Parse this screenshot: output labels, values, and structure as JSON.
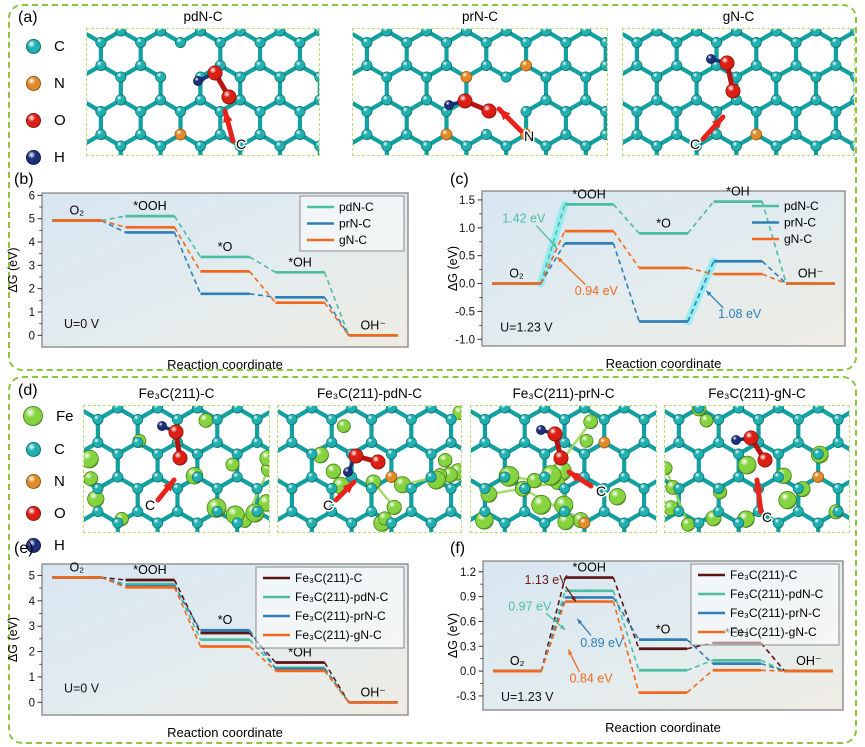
{
  "group_a": {
    "label": "(a)",
    "atoms": [
      {
        "symbol": "C",
        "color": "#1fb0b0"
      },
      {
        "symbol": "N",
        "color": "#e08a28"
      },
      {
        "symbol": "O",
        "color": "#dc1f14"
      },
      {
        "symbol": "H",
        "color": "#1c2f7a"
      }
    ],
    "structures": [
      {
        "title": "pdN-C",
        "arrow_label": "C"
      },
      {
        "title": "prN-C",
        "arrow_label": "N"
      },
      {
        "title": "gN-C",
        "arrow_label": "C"
      }
    ]
  },
  "group_d": {
    "label": "(d)",
    "atoms": [
      {
        "symbol": "Fe",
        "color": "#85d33f"
      },
      {
        "symbol": "C",
        "color": "#1fb0b0"
      },
      {
        "symbol": "N",
        "color": "#e08a28"
      },
      {
        "symbol": "O",
        "color": "#dc1f14"
      },
      {
        "symbol": "H",
        "color": "#1c2f7a"
      }
    ],
    "structures": [
      {
        "title": "Fe₃C(211)-C",
        "arrow_label": "C"
      },
      {
        "title": "Fe₃C(211)-pdN-C",
        "arrow_label": "C"
      },
      {
        "title": "Fe₃C(211)-prN-C",
        "arrow_label": "C"
      },
      {
        "title": "Fe₃C(211)-gN-C",
        "arrow_label": "C"
      }
    ]
  },
  "chart_data": [
    {
      "panel": "b",
      "label": "(b)",
      "type": "line",
      "stages": [
        "O₂",
        "*OOH",
        "*O",
        "*OH",
        "OH⁻"
      ],
      "xlabel": "Reaction coordinate",
      "ylabel": "ΔG (eV)",
      "potential": {
        "text": "U=0 V",
        "x": 0.06,
        "y": 0.32
      },
      "ylim": [
        -0.5,
        6.1
      ],
      "yticks": [
        0,
        1,
        2,
        3,
        4,
        5,
        6
      ],
      "ytick_labels": [
        "0",
        "1",
        "2",
        "3",
        "4",
        "5",
        "6"
      ],
      "legend_box": true,
      "series": [
        {
          "name": "pdN-C",
          "color": "#4cbda1",
          "values": [
            4.92,
            5.11,
            3.36,
            2.7,
            0
          ]
        },
        {
          "name": "prN-C",
          "color": "#2d7fb6",
          "values": [
            4.92,
            4.41,
            1.78,
            1.63,
            0
          ]
        },
        {
          "name": "gN-C",
          "color": "#f2691d",
          "values": [
            4.92,
            4.63,
            2.74,
            1.4,
            0
          ]
        }
      ],
      "annotations": [],
      "highlights": [],
      "highlight_color": "#7deef2"
    },
    {
      "panel": "c",
      "label": "(c)",
      "type": "line",
      "stages": [
        "O₂",
        "*OOH",
        "*O",
        "*OH",
        "OH⁻"
      ],
      "xlabel": "Reaction coordinate",
      "ylabel": "ΔG (eV)",
      "potential": {
        "text": "U=1.23 V",
        "x": 0.05,
        "y": -0.86
      },
      "ylim": [
        -1.12,
        1.66
      ],
      "yticks": [
        -1.0,
        -0.5,
        0.0,
        0.5,
        1.0,
        1.5
      ],
      "ytick_labels": [
        "-1.0",
        "-0.5",
        "0.0",
        "0.5",
        "1.0",
        "1.5"
      ],
      "legend_box": false,
      "series": [
        {
          "name": "pdN-C",
          "color": "#4cbda1",
          "values": [
            0,
            1.42,
            0.9,
            1.47,
            0
          ]
        },
        {
          "name": "prN-C",
          "color": "#2d7fb6",
          "values": [
            0,
            0.72,
            -0.68,
            0.4,
            0
          ]
        },
        {
          "name": "gN-C",
          "color": "#f2691d",
          "values": [
            0,
            0.94,
            0.28,
            0.17,
            0
          ]
        }
      ],
      "annotations": [
        {
          "text": "1.42 eV",
          "color": "#4cbda1",
          "tx": 0.115,
          "ty": 1.17,
          "lx1": 0.15,
          "ly1": 1.04,
          "lx2": 0.206,
          "ly2": 0.64
        },
        {
          "text": "0.94 eV",
          "color": "#f2691d",
          "tx": 0.315,
          "ty": -0.13,
          "lx1": 0.285,
          "ly1": -0.02,
          "lx2": 0.208,
          "ly2": 0.47
        },
        {
          "text": "1.08 eV",
          "color": "#2d7fb6",
          "tx": 0.71,
          "ty": -0.55,
          "lx1": 0.665,
          "ly1": -0.44,
          "lx2": 0.618,
          "ly2": -0.13
        }
      ],
      "highlights": [
        {
          "series": 0,
          "segment": 0
        },
        {
          "series": 1,
          "segment": 2
        }
      ],
      "highlight_color": "#7deef2"
    },
    {
      "panel": "e",
      "label": "(e)",
      "type": "line",
      "stages": [
        "O₂",
        "*OOH",
        "*O",
        "*OH",
        "OH⁻"
      ],
      "xlabel": "Reaction coordinate",
      "ylabel": "ΔG (eV)",
      "potential": {
        "text": "U=0 V",
        "x": 0.06,
        "y": 0.38
      },
      "ylim": [
        -0.5,
        5.45
      ],
      "yticks": [
        0,
        1,
        2,
        3,
        4,
        5
      ],
      "ytick_labels": [
        "0",
        "1",
        "2",
        "3",
        "4",
        "5"
      ],
      "legend_box": true,
      "series": [
        {
          "name": "Fe₃C(211)-C",
          "color": "#5b1416",
          "values": [
            4.92,
            4.82,
            2.73,
            1.57,
            0
          ]
        },
        {
          "name": "Fe₃C(211)-pdN-C",
          "color": "#4cbda1",
          "values": [
            4.92,
            4.66,
            2.47,
            1.36,
            0
          ]
        },
        {
          "name": "Fe₃C(211)-prN-C",
          "color": "#2d7fb6",
          "values": [
            4.92,
            4.58,
            2.84,
            1.32,
            0
          ]
        },
        {
          "name": "Fe₃C(211)-gN-C",
          "color": "#f2691d",
          "values": [
            4.92,
            4.53,
            2.2,
            1.24,
            0
          ]
        }
      ],
      "annotations": [],
      "highlights": [],
      "highlight_color": "#7deef2"
    },
    {
      "panel": "f",
      "label": "(f)",
      "type": "line",
      "stages": [
        "O₂",
        "*OOH",
        "*O",
        "*OH",
        "OH⁻"
      ],
      "xlabel": "Reaction coordinate",
      "ylabel": "ΔG (eV)",
      "potential": {
        "text": "U=1.23 V",
        "x": 0.05,
        "y": -0.36
      },
      "ylim": [
        -0.47,
        1.33
      ],
      "yticks": [
        -0.3,
        0.0,
        0.3,
        0.6,
        0.9,
        1.2
      ],
      "ytick_labels": [
        "-0.3",
        "0.0",
        "0.3",
        "0.6",
        "0.9",
        "1.2"
      ],
      "legend_box": true,
      "series": [
        {
          "name": "Fe₃C(211)-C",
          "color": "#5b1416",
          "values": [
            0,
            1.13,
            0.27,
            0.34,
            0
          ]
        },
        {
          "name": "Fe₃C(211)-pdN-C",
          "color": "#4cbda1",
          "values": [
            0,
            0.97,
            0.01,
            0.13,
            0
          ]
        },
        {
          "name": "Fe₃C(211)-prN-C",
          "color": "#2d7fb6",
          "values": [
            0,
            0.89,
            0.38,
            0.09,
            0
          ]
        },
        {
          "name": "Fe₃C(211)-gN-C",
          "color": "#f2691d",
          "values": [
            0,
            0.84,
            -0.26,
            0.01,
            0
          ]
        }
      ],
      "annotations": [
        {
          "text": "1.13 eV",
          "color": "#6b1a17",
          "tx": 0.175,
          "ty": 1.1,
          "lx1": 0.23,
          "ly1": 1.02,
          "lx2": 0.258,
          "ly2": 0.84
        },
        {
          "text": "0.97 eV",
          "color": "#4cbda1",
          "tx": 0.13,
          "ty": 0.78,
          "lx1": 0.175,
          "ly1": 0.7,
          "lx2": 0.228,
          "ly2": 0.5
        },
        {
          "text": "0.89 eV",
          "color": "#2d7fb6",
          "tx": 0.33,
          "ty": 0.34,
          "lx1": 0.3,
          "ly1": 0.43,
          "lx2": 0.262,
          "ly2": 0.63
        },
        {
          "text": "0.84 eV",
          "color": "#f2691d",
          "tx": 0.3,
          "ty": -0.09,
          "lx1": 0.268,
          "ly1": -0.01,
          "lx2": 0.237,
          "ly2": 0.26
        }
      ],
      "highlights": [],
      "highlight_color": "#7deef2"
    }
  ]
}
